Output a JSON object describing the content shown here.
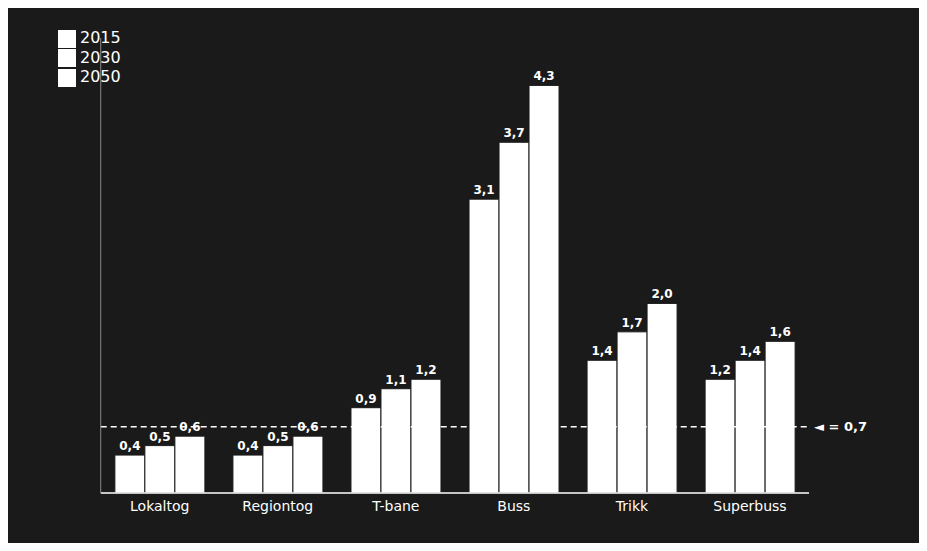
{
  "chart_data": {
    "type": "bar",
    "categories": [
      "Lokaltog",
      "Regiontog",
      "T-bane",
      "Buss",
      "Trikk",
      "Superbuss"
    ],
    "series": [
      {
        "name": "2015",
        "color": "#ffffff",
        "values": [
          0.4,
          0.4,
          0.9,
          3.1,
          1.4,
          1.2
        ],
        "value_labels": [
          "0,4",
          "0,4",
          "0,9",
          "3,1",
          "1,4",
          "1,2"
        ]
      },
      {
        "name": "2030",
        "color": "#ffffff",
        "values": [
          0.5,
          0.5,
          1.1,
          3.7,
          1.7,
          1.4
        ],
        "value_labels": [
          "0,5",
          "0,5",
          "1,1",
          "3,7",
          "1,7",
          "1,4"
        ]
      },
      {
        "name": "2050",
        "color": "#ffffff",
        "values": [
          0.6,
          0.6,
          1.2,
          4.3,
          2.0,
          1.6
        ],
        "value_labels": [
          "0,6",
          "0,6",
          "1,2",
          "4,3",
          "2,0",
          "1,6"
        ]
      }
    ],
    "ylim": [
      0,
      4.8
    ],
    "tick_labels": "x",
    "data_labels": true,
    "legend": "upper left",
    "grid": false,
    "annotations": [
      {
        "text": "◄ = 0,7",
        "y": 0.7,
        "line_style": "dashed"
      }
    ]
  }
}
